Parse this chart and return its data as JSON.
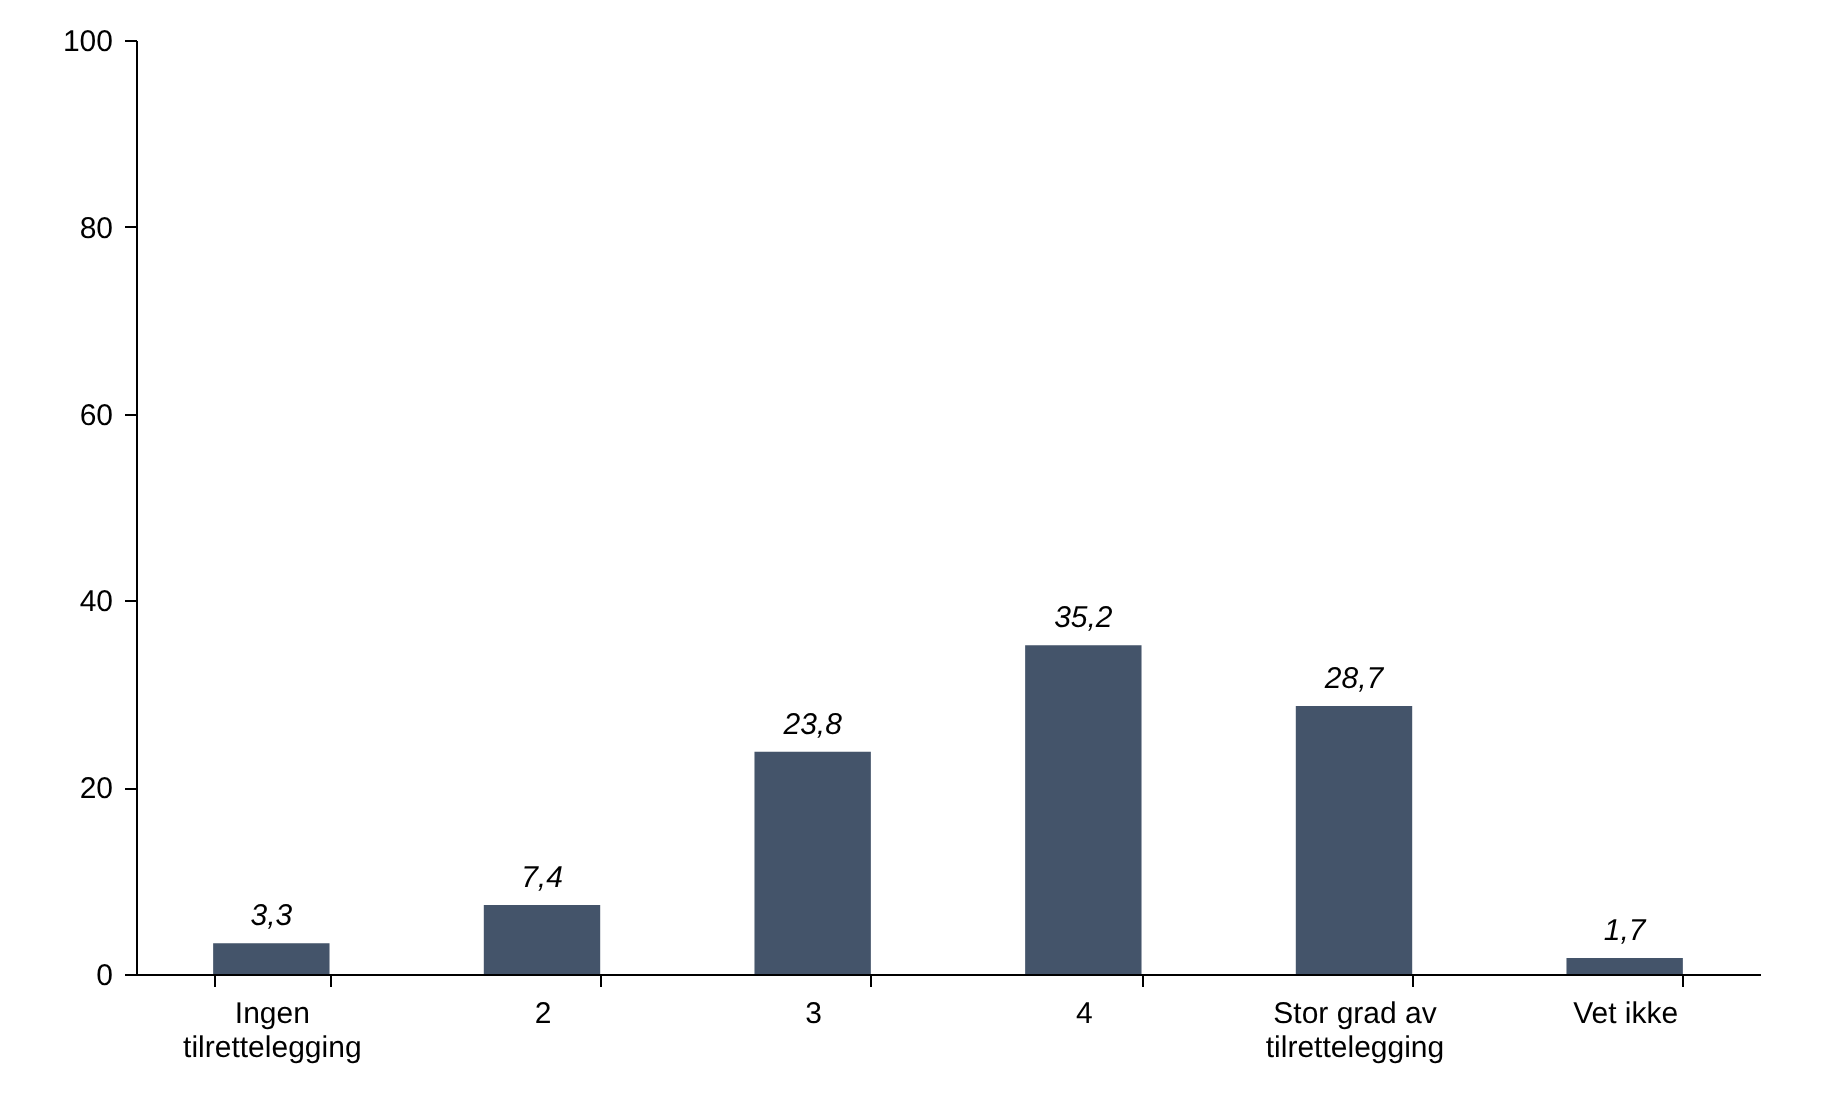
{
  "chart_data": {
    "type": "bar",
    "categories": [
      "Ingen tilrettelegging",
      "2",
      "3",
      "4",
      "Stor grad av tilrettelegging",
      "Vet ikke"
    ],
    "values": [
      3.3,
      7.4,
      23.8,
      35.2,
      28.7,
      1.7
    ],
    "value_labels": [
      "3,3",
      "7,4",
      "23,8",
      "35,2",
      "28,7",
      "1,7"
    ],
    "color": "#44546a",
    "ylim": [
      0,
      100
    ],
    "yticks": [
      0,
      20,
      40,
      60,
      80,
      100
    ],
    "grid": false
  }
}
